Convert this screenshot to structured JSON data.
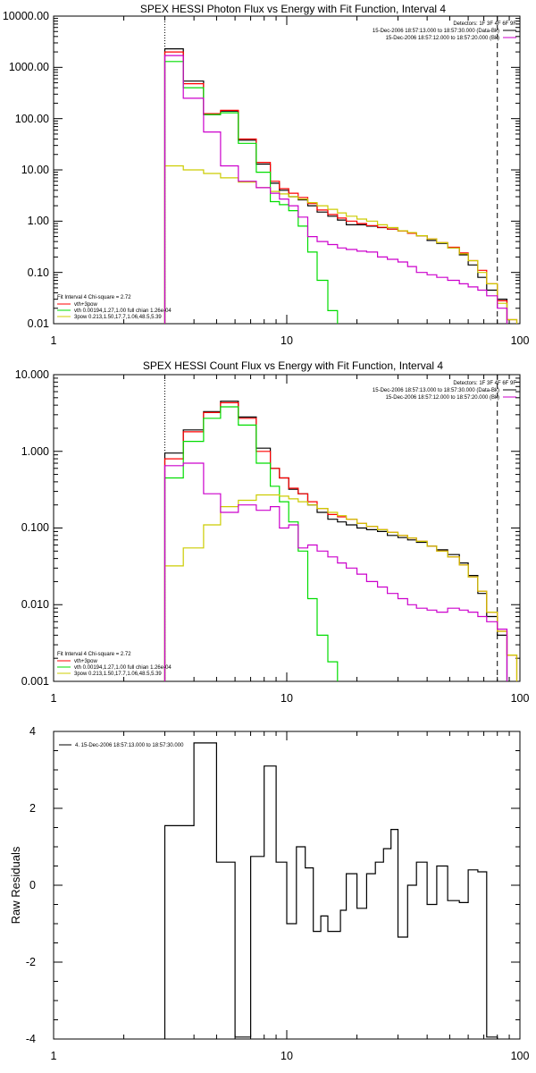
{
  "chart_data": [
    {
      "type": "line",
      "title": "SPEX HESSI Photon Flux vs Energy with Fit Function, Interval 4",
      "xlabel": "",
      "ylabel": "",
      "x_scale": "log",
      "y_scale": "log",
      "xlim": [
        1,
        100
      ],
      "ylim": [
        0.01,
        10000
      ],
      "x_ticks": [
        {
          "v": 1,
          "label": "1"
        },
        {
          "v": 10,
          "label": "10"
        },
        {
          "v": 100,
          "label": "100"
        }
      ],
      "y_ticks": [
        {
          "v": 0.01,
          "label": "0.01"
        },
        {
          "v": 0.1,
          "label": "0.10"
        },
        {
          "v": 1,
          "label": "1.00"
        },
        {
          "v": 10,
          "label": "10.00"
        },
        {
          "v": 100,
          "label": "100.00"
        },
        {
          "v": 1000,
          "label": "1000.00"
        },
        {
          "v": 10000,
          "label": "10000.00"
        }
      ],
      "vlines": [
        {
          "x": 3,
          "style": "dotted"
        },
        {
          "x": 80,
          "style": "dashed"
        }
      ],
      "legend_top_right": [
        {
          "text": "Detectors: 1F 3F 4F 6F 9F",
          "color": ""
        },
        {
          "text": "15-Dec-2006 18:57:13.000 to 18:57:30.000 (Data-Bk)",
          "color": "#000000"
        },
        {
          "text": "15-Dec-2006 18:57:12.000 to 18:57:20.000 (Bk)",
          "color": "#cc00cc"
        }
      ],
      "legend_bottom_left": [
        {
          "text": "Fit Interval 4   Chi-square = 2.72",
          "color": ""
        },
        {
          "text": "vth+3pow",
          "color": "#ff0000"
        },
        {
          "text": "vth 0.00194,1.27,1.00  full chian 1.26e-04",
          "color": "#00dd00"
        },
        {
          "text": "3pow 0.213,1.50,17.7,1.06,48.5,5.39",
          "color": "#cccc00"
        }
      ],
      "edges": [
        3.0,
        3.6,
        4.4,
        5.2,
        6.2,
        7.4,
        8.5,
        9.3,
        10.2,
        11.2,
        12.3,
        13.5,
        15.0,
        16.5,
        18.0,
        20.0,
        22.0,
        24.5,
        27.0,
        30.0,
        33.0,
        36.0,
        40.0,
        44.0,
        49.0,
        55.0,
        60.0,
        66.0,
        72.0,
        80.0,
        88.0,
        97.0
      ],
      "series": [
        {
          "name": "",
          "color": "#000000",
          "values": [
            2300,
            540,
            120,
            140,
            38,
            13,
            5.5,
            4.0,
            3.0,
            2.6,
            2.0,
            1.5,
            1.25,
            1.05,
            0.85,
            0.85,
            0.8,
            0.75,
            0.7,
            0.65,
            0.58,
            0.52,
            0.42,
            0.37,
            0.3,
            0.22,
            0.14,
            0.08,
            0.045,
            0.03,
            null
          ]
        },
        {
          "name": "",
          "color": "#ff0000",
          "values": [
            2000,
            480,
            125,
            145,
            40,
            14,
            6.0,
            4.3,
            3.5,
            2.9,
            2.2,
            1.65,
            1.35,
            1.15,
            1.0,
            0.9,
            0.82,
            0.76,
            0.7,
            0.64,
            0.58,
            0.52,
            0.45,
            0.38,
            0.31,
            0.24,
            0.17,
            0.11,
            0.06,
            0.028,
            0.012
          ]
        },
        {
          "name": "",
          "color": "#00dd00",
          "values": [
            1300,
            400,
            120,
            130,
            33,
            9,
            2.4,
            2.1,
            1.6,
            0.8,
            0.25,
            0.07,
            0.018,
            0.006,
            null,
            null,
            null,
            null,
            null,
            null,
            null,
            null,
            null,
            null,
            null,
            null,
            null,
            null,
            null,
            null,
            null
          ]
        },
        {
          "name": "",
          "color": "#cccc00",
          "values": [
            12,
            10,
            8.5,
            7.0,
            5.8,
            4.5,
            3.8,
            3.4,
            3.0,
            2.7,
            2.3,
            2.0,
            1.7,
            1.45,
            1.25,
            1.1,
            1.0,
            0.85,
            0.75,
            0.65,
            0.6,
            0.52,
            0.45,
            0.38,
            0.3,
            0.23,
            0.17,
            0.1,
            0.06,
            0.025,
            0.012
          ]
        },
        {
          "name": "",
          "color": "#cc00cc",
          "values": [
            1700,
            250,
            55,
            12,
            6.0,
            4.5,
            3.5,
            2.7,
            2.0,
            1.2,
            0.5,
            0.4,
            0.35,
            0.3,
            0.28,
            0.26,
            0.25,
            0.2,
            0.18,
            0.16,
            0.13,
            0.1,
            0.09,
            0.08,
            0.07,
            0.06,
            0.052,
            0.045,
            0.035,
            0.02,
            null
          ]
        }
      ]
    },
    {
      "type": "line",
      "title": "SPEX HESSI Count Flux vs Energy with Fit Function, Interval 4",
      "xlabel": "",
      "ylabel": "",
      "x_scale": "log",
      "y_scale": "log",
      "xlim": [
        1,
        100
      ],
      "ylim": [
        0.001,
        10
      ],
      "x_ticks": [
        {
          "v": 1,
          "label": "1"
        },
        {
          "v": 10,
          "label": "10"
        },
        {
          "v": 100,
          "label": "100"
        }
      ],
      "y_ticks": [
        {
          "v": 0.001,
          "label": "0.001"
        },
        {
          "v": 0.01,
          "label": "0.010"
        },
        {
          "v": 0.1,
          "label": "0.100"
        },
        {
          "v": 1,
          "label": "1.000"
        },
        {
          "v": 10,
          "label": "10.000"
        }
      ],
      "vlines": [
        {
          "x": 3,
          "style": "dotted"
        },
        {
          "x": 80,
          "style": "dashed"
        }
      ],
      "legend_top_right": [
        {
          "text": "Detectors: 1F 3F 4F 6F 9F",
          "color": ""
        },
        {
          "text": "15-Dec-2006 18:57:13.000 to 18:57:30.000 (Data-Bk)",
          "color": "#000000"
        },
        {
          "text": "15-Dec-2006 18:57:12.000 to 18:57:20.000 (Bk)",
          "color": "#cc00cc"
        }
      ],
      "legend_bottom_left": [
        {
          "text": "Fit Interval 4   Chi-square = 2.72",
          "color": ""
        },
        {
          "text": "vth+3pow",
          "color": "#ff0000"
        },
        {
          "text": "vth 0.00194,1.27,1.00  full chian 1.26e-04",
          "color": "#00dd00"
        },
        {
          "text": "3pow 0.213,1.50,17.7,1.06,48.5,5.39",
          "color": "#cccc00"
        }
      ],
      "edges": [
        3.0,
        3.6,
        4.4,
        5.2,
        6.2,
        7.4,
        8.5,
        9.3,
        10.2,
        11.2,
        12.3,
        13.5,
        15.0,
        16.5,
        18.0,
        20.0,
        22.0,
        24.5,
        27.0,
        30.0,
        33.0,
        36.0,
        40.0,
        44.0,
        49.0,
        55.0,
        60.0,
        66.0,
        72.0,
        80.0,
        88.0,
        97.0
      ],
      "series": [
        {
          "name": "",
          "color": "#000000",
          "values": [
            0.95,
            1.9,
            3.3,
            4.5,
            2.8,
            1.1,
            0.6,
            0.45,
            0.32,
            0.28,
            0.2,
            0.16,
            0.13,
            0.12,
            0.11,
            0.1,
            0.095,
            0.09,
            0.08,
            0.075,
            0.07,
            0.065,
            0.058,
            0.052,
            0.045,
            0.035,
            0.024,
            0.014,
            0.007,
            0.004,
            null
          ]
        },
        {
          "name": "",
          "color": "#ff0000",
          "values": [
            0.8,
            1.8,
            3.2,
            4.3,
            2.7,
            1.0,
            0.6,
            0.45,
            0.33,
            0.28,
            0.22,
            0.18,
            0.15,
            0.14,
            0.13,
            0.115,
            0.105,
            0.095,
            0.088,
            0.08,
            0.074,
            0.067,
            0.058,
            0.05,
            0.042,
            0.033,
            0.023,
            0.015,
            0.008,
            0.0045,
            0.0022
          ]
        },
        {
          "name": "",
          "color": "#00dd00",
          "values": [
            0.45,
            1.35,
            2.7,
            3.8,
            2.2,
            0.7,
            0.35,
            0.22,
            0.12,
            0.05,
            0.012,
            0.004,
            0.0018,
            null,
            null,
            null,
            null,
            null,
            null,
            null,
            null,
            null,
            null,
            null,
            null,
            null,
            null,
            null,
            null,
            null,
            null
          ]
        },
        {
          "name": "",
          "color": "#cccc00",
          "values": [
            0.032,
            0.055,
            0.11,
            0.19,
            0.23,
            0.27,
            0.27,
            0.26,
            0.24,
            0.22,
            0.2,
            0.18,
            0.16,
            0.145,
            0.13,
            0.115,
            0.105,
            0.095,
            0.088,
            0.08,
            0.074,
            0.067,
            0.058,
            0.05,
            0.042,
            0.033,
            0.023,
            0.015,
            0.008,
            0.0045,
            0.0022
          ]
        },
        {
          "name": "",
          "color": "#cc00cc",
          "values": [
            0.65,
            0.7,
            0.28,
            0.16,
            0.2,
            0.17,
            0.19,
            0.1,
            0.11,
            0.055,
            0.06,
            0.05,
            0.042,
            0.035,
            0.03,
            0.025,
            0.02,
            0.017,
            0.014,
            0.012,
            0.01,
            0.009,
            0.0085,
            0.008,
            0.009,
            0.0085,
            0.008,
            0.007,
            0.006,
            0.0048,
            null
          ]
        }
      ]
    },
    {
      "type": "line",
      "title": "",
      "xlabel": "",
      "ylabel": "Raw Residuals",
      "x_scale": "log",
      "y_scale": "linear",
      "xlim": [
        1,
        100
      ],
      "ylim": [
        -4,
        4
      ],
      "x_ticks": [
        {
          "v": 1,
          "label": "1"
        },
        {
          "v": 10,
          "label": "10"
        },
        {
          "v": 100,
          "label": "100"
        }
      ],
      "y_ticks": [
        {
          "v": -4,
          "label": "-4"
        },
        {
          "v": -2,
          "label": "-2"
        },
        {
          "v": 0,
          "label": "0"
        },
        {
          "v": 2,
          "label": "2"
        },
        {
          "v": 4,
          "label": "4"
        }
      ],
      "legend_top_left": [
        {
          "text": "4. 15-Dec-2006 18:57:13.000 to 18:57:30.000",
          "color": "#000000"
        }
      ],
      "edges": [
        3.0,
        4.0,
        5.0,
        6.0,
        7.0,
        8.0,
        9.0,
        10.0,
        11.0,
        12.0,
        13.0,
        14.0,
        15.0,
        17.0,
        18.0,
        20.0,
        22.0,
        24.0,
        26.0,
        28.0,
        30.0,
        33.0,
        36.0,
        40.0,
        44.0,
        49.0,
        55.0,
        60.0,
        66.0,
        72.0,
        80.0
      ],
      "series": [
        {
          "name": "",
          "color": "#000000",
          "values": [
            1.55,
            3.7,
            0.6,
            -3.95,
            0.75,
            3.1,
            0.6,
            -1.0,
            1.0,
            0.45,
            -1.2,
            -0.8,
            -1.2,
            -0.65,
            0.3,
            -0.6,
            0.3,
            0.6,
            0.95,
            1.45,
            -1.35,
            0.0,
            0.6,
            -0.5,
            0.5,
            -0.4,
            -0.45,
            0.4,
            0.35,
            -3.95
          ]
        }
      ]
    }
  ]
}
